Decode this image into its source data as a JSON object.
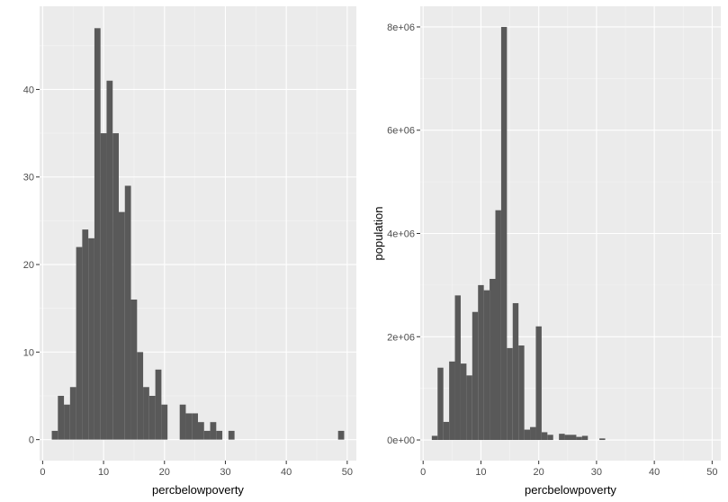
{
  "chart_data": [
    {
      "type": "bar",
      "subtype": "histogram",
      "title": "",
      "xlabel": "percbelowpoverty",
      "ylabel": "",
      "xlim": [
        -0.5,
        51.5
      ],
      "ylim": [
        -2.4,
        49.5
      ],
      "xticks": [
        0,
        10,
        20,
        30,
        40,
        50
      ],
      "xtick_labels": [
        "0",
        "10",
        "20",
        "30",
        "40",
        "50"
      ],
      "yticks": [
        0,
        10,
        20,
        30,
        40
      ],
      "ytick_labels": [
        "0",
        "10",
        "20",
        "30",
        "40"
      ],
      "bin_start": 1.5,
      "bin_width": 1,
      "values": [
        1,
        5,
        4,
        6,
        22,
        24,
        23,
        47,
        35,
        41,
        35,
        26,
        29,
        16,
        10,
        6,
        5,
        8,
        4,
        0,
        0,
        4,
        3,
        3,
        2,
        1,
        2,
        1,
        0,
        1,
        0,
        0,
        0,
        0,
        0,
        0,
        0,
        0,
        0,
        0,
        0,
        0,
        0,
        0,
        0,
        0,
        0,
        1
      ],
      "grid": true
    },
    {
      "type": "bar",
      "subtype": "weighted-histogram",
      "title": "",
      "xlabel": "percbelowpoverty",
      "ylabel": "population",
      "xlim": [
        -0.5,
        51.5
      ],
      "ylim": [
        -400000,
        8400000
      ],
      "xticks": [
        0,
        10,
        20,
        30,
        40,
        50
      ],
      "xtick_labels": [
        "0",
        "10",
        "20",
        "30",
        "40",
        "50"
      ],
      "yticks": [
        0,
        2000000,
        4000000,
        6000000,
        8000000
      ],
      "ytick_labels": [
        "0e+00",
        "2e+06",
        "4e+06",
        "6e+06",
        "8e+06"
      ],
      "bin_start": 1.5,
      "bin_width": 1,
      "values": [
        80000,
        1400000,
        350000,
        1520000,
        2800000,
        1480000,
        1250000,
        2480000,
        3000000,
        2900000,
        3120000,
        4450000,
        8000000,
        1780000,
        2650000,
        1830000,
        200000,
        250000,
        2200000,
        150000,
        100000,
        0,
        120000,
        100000,
        100000,
        60000,
        80000,
        0,
        0,
        30000,
        0,
        0,
        0,
        0,
        0,
        0,
        0,
        0,
        0,
        0,
        0,
        0,
        0,
        0,
        0,
        0,
        0,
        0
      ],
      "grid": true
    }
  ]
}
